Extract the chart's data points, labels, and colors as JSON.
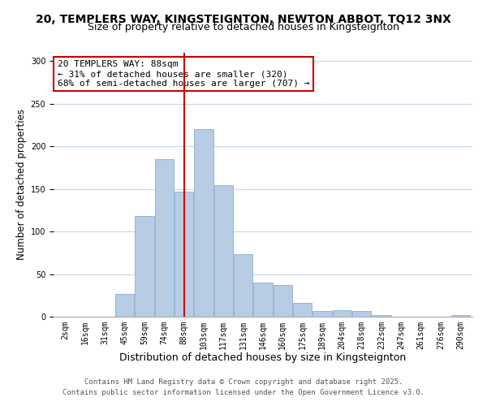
{
  "title": "20, TEMPLERS WAY, KINGSTEIGNTON, NEWTON ABBOT, TQ12 3NX",
  "subtitle": "Size of property relative to detached houses in Kingsteignton",
  "xlabel": "Distribution of detached houses by size in Kingsteignton",
  "ylabel": "Number of detached properties",
  "bar_labels": [
    "2sqm",
    "16sqm",
    "31sqm",
    "45sqm",
    "59sqm",
    "74sqm",
    "88sqm",
    "103sqm",
    "117sqm",
    "131sqm",
    "146sqm",
    "160sqm",
    "175sqm",
    "189sqm",
    "204sqm",
    "218sqm",
    "232sqm",
    "247sqm",
    "261sqm",
    "276sqm",
    "290sqm"
  ],
  "bar_values": [
    0,
    0,
    0,
    27,
    118,
    185,
    147,
    220,
    155,
    73,
    40,
    37,
    16,
    7,
    8,
    7,
    2,
    0,
    0,
    0,
    2
  ],
  "bar_color": "#b8cce4",
  "bar_edge_color": "#8ab0d4",
  "vline_x_index": 6,
  "vline_color": "#cc0000",
  "annotation_line1": "20 TEMPLERS WAY: 88sqm",
  "annotation_line2": "← 31% of detached houses are smaller (320)",
  "annotation_line3": "68% of semi-detached houses are larger (707) →",
  "box_edge_color": "#cc0000",
  "ylim": [
    0,
    310
  ],
  "yticks": [
    0,
    50,
    100,
    150,
    200,
    250,
    300
  ],
  "background_color": "#ffffff",
  "grid_color": "#c8d8e8",
  "footer_line1": "Contains HM Land Registry data © Crown copyright and database right 2025.",
  "footer_line2": "Contains public sector information licensed under the Open Government Licence v3.0.",
  "title_fontsize": 10,
  "subtitle_fontsize": 9,
  "xlabel_fontsize": 9,
  "ylabel_fontsize": 8.5,
  "tick_fontsize": 7,
  "annotation_fontsize": 8,
  "footer_fontsize": 6.5
}
